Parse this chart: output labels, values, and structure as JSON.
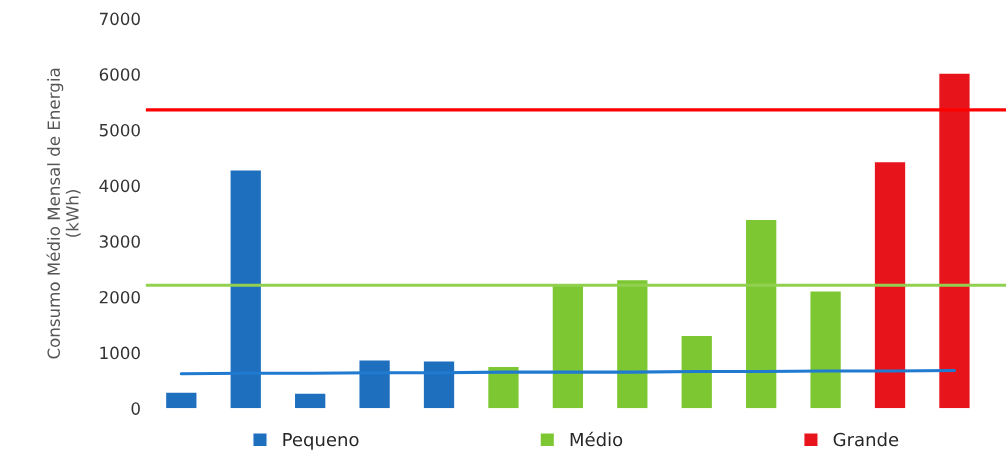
{
  "chart_data": {
    "type": "bar",
    "ylabel": "Consumo Médio Mensal de Energia\n(kWh)",
    "categories": [
      null,
      null,
      null,
      null,
      null,
      null,
      null,
      null,
      null,
      null,
      null,
      null,
      null
    ],
    "series": [
      {
        "name": "Pequeno",
        "color": "#1f6fbf",
        "values": [
          280,
          4270,
          260,
          860,
          840,
          null,
          null,
          null,
          null,
          null,
          null,
          null,
          null
        ]
      },
      {
        "name": "Médio",
        "color": "#7dc832",
        "values": [
          null,
          null,
          null,
          null,
          null,
          740,
          2230,
          2300,
          1300,
          3380,
          2100,
          null,
          null
        ]
      },
      {
        "name": "Grande",
        "color": "#e8141b",
        "values": [
          null,
          null,
          null,
          null,
          null,
          null,
          null,
          null,
          null,
          null,
          null,
          4420,
          6010
        ]
      },
      {
        "type": "line",
        "color": "#1f7ad0",
        "values": [
          620,
          630,
          630,
          640,
          640,
          650,
          650,
          650,
          660,
          660,
          670,
          670,
          680
        ]
      }
    ],
    "ref_lines": [
      {
        "axis": "y",
        "value": 5360,
        "color": "#ff0000"
      },
      {
        "axis": "y",
        "value": 2210,
        "color": "#92d050"
      }
    ],
    "ylim": [
      0,
      7000
    ],
    "yticks": [
      0,
      1000,
      2000,
      3000,
      4000,
      5000,
      6000,
      7000
    ],
    "tick_labels": "y",
    "legend": "bottom",
    "grid": false
  }
}
